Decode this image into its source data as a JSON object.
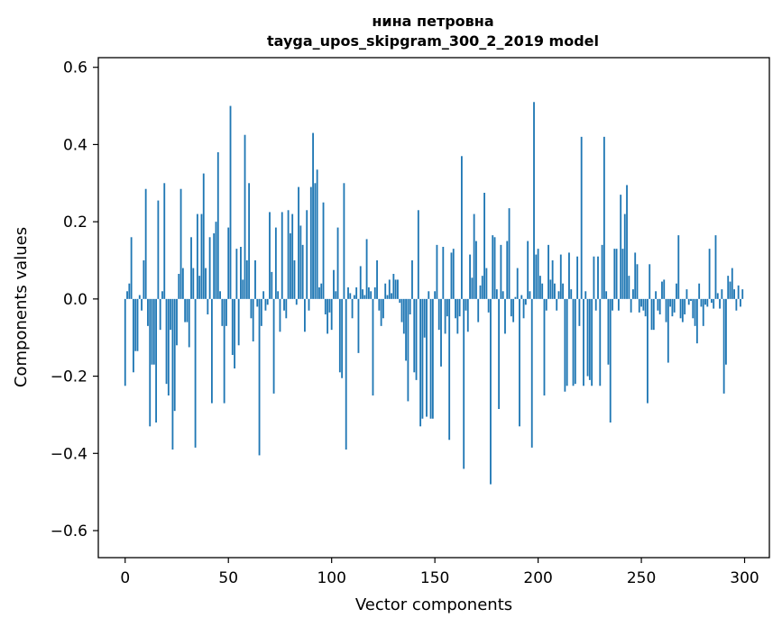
{
  "chart_data": {
    "type": "bar",
    "title": "нина петровна",
    "subtitle": "tayga_upos_skipgram_300_2_2019 model",
    "xlabel": "Vector components",
    "ylabel": "Components values",
    "xlim": [
      -13,
      312
    ],
    "ylim": [
      -0.67,
      0.625
    ],
    "xticks": [
      0,
      50,
      100,
      150,
      200,
      250,
      300
    ],
    "yticks": [
      -0.6,
      -0.4,
      -0.2,
      0.0,
      0.2,
      0.4,
      0.6
    ],
    "xtick_labels": [
      "0",
      "50",
      "100",
      "150",
      "200",
      "250",
      "300"
    ],
    "ytick_labels": [
      "−0.6",
      "−0.4",
      "−0.2",
      "0.0",
      "0.2",
      "0.4",
      "0.6"
    ],
    "bar_color": "#1f77b4",
    "grid": false,
    "values": [
      -0.225,
      0.02,
      0.04,
      0.16,
      -0.19,
      -0.135,
      -0.135,
      0.01,
      -0.03,
      0.1,
      0.285,
      -0.07,
      -0.33,
      -0.17,
      -0.17,
      -0.32,
      0.255,
      -0.08,
      0.02,
      0.3,
      -0.22,
      -0.25,
      -0.08,
      -0.39,
      -0.29,
      -0.12,
      0.065,
      0.285,
      0.08,
      -0.06,
      -0.06,
      -0.125,
      0.16,
      0.08,
      -0.385,
      0.22,
      0.06,
      0.22,
      0.325,
      0.08,
      -0.04,
      0.16,
      -0.27,
      0.17,
      0.2,
      0.38,
      0.02,
      -0.07,
      -0.27,
      -0.07,
      0.185,
      0.5,
      -0.145,
      -0.18,
      0.13,
      -0.12,
      0.135,
      0.05,
      0.425,
      0.1,
      0.3,
      -0.05,
      -0.11,
      0.1,
      -0.02,
      -0.405,
      -0.07,
      0.02,
      -0.03,
      -0.015,
      0.225,
      0.07,
      -0.245,
      0.185,
      0.02,
      -0.085,
      0.225,
      -0.03,
      -0.05,
      0.23,
      0.17,
      0.22,
      0.1,
      -0.015,
      0.29,
      0.19,
      0.14,
      -0.085,
      0.23,
      -0.03,
      0.29,
      0.43,
      0.3,
      0.335,
      0.03,
      0.04,
      0.25,
      -0.04,
      -0.09,
      -0.035,
      -0.08,
      0.075,
      0.02,
      0.185,
      -0.19,
      -0.205,
      0.3,
      -0.39,
      0.03,
      0.015,
      -0.05,
      0.01,
      0.03,
      -0.14,
      0.085,
      0.025,
      0.01,
      0.155,
      0.03,
      0.02,
      -0.25,
      0.03,
      0.1,
      -0.03,
      -0.07,
      -0.05,
      0.04,
      0.01,
      0.05,
      0.015,
      0.065,
      0.05,
      0.05,
      -0.01,
      -0.06,
      -0.09,
      -0.16,
      -0.265,
      -0.04,
      0.1,
      -0.19,
      -0.21,
      0.23,
      -0.33,
      -0.31,
      -0.1,
      -0.305,
      0.02,
      -0.31,
      -0.31,
      0.02,
      0.14,
      -0.08,
      -0.175,
      0.135,
      -0.09,
      -0.045,
      -0.365,
      0.12,
      0.13,
      -0.05,
      -0.09,
      -0.045,
      0.37,
      -0.44,
      -0.03,
      -0.085,
      0.115,
      0.055,
      0.22,
      0.15,
      -0.06,
      0.035,
      0.06,
      0.275,
      0.08,
      -0.035,
      -0.48,
      0.165,
      0.16,
      0.025,
      -0.285,
      0.14,
      0.02,
      -0.09,
      0.15,
      0.235,
      -0.045,
      -0.06,
      0.005,
      0.08,
      -0.33,
      0.01,
      -0.05,
      -0.015,
      0.15,
      0.02,
      -0.385,
      0.51,
      0.115,
      0.13,
      0.06,
      0.04,
      -0.25,
      -0.03,
      0.14,
      0.05,
      0.1,
      0.04,
      -0.03,
      0.02,
      0.115,
      0.04,
      -0.24,
      -0.225,
      0.12,
      0.025,
      -0.225,
      -0.22,
      0.11,
      -0.07,
      0.42,
      -0.225,
      0.02,
      -0.2,
      -0.21,
      -0.225,
      0.11,
      -0.03,
      0.11,
      -0.225,
      0.14,
      0.42,
      0.02,
      -0.17,
      -0.32,
      -0.03,
      0.13,
      0.13,
      -0.03,
      0.27,
      0.13,
      0.22,
      0.295,
      0.06,
      -0.035,
      0.025,
      0.12,
      0.09,
      -0.035,
      -0.02,
      -0.03,
      -0.045,
      -0.27,
      0.09,
      -0.08,
      -0.08,
      0.02,
      -0.03,
      -0.04,
      0.045,
      0.05,
      -0.06,
      -0.165,
      -0.02,
      -0.045,
      -0.035,
      0.04,
      0.165,
      -0.05,
      -0.06,
      -0.04,
      0.025,
      -0.015,
      -0.005,
      -0.05,
      -0.07,
      -0.115,
      0.04,
      -0.02,
      -0.07,
      -0.015,
      -0.02,
      0.13,
      -0.01,
      -0.025,
      0.165,
      0.015,
      -0.025,
      0.025,
      -0.245,
      -0.17,
      0.06,
      0.045,
      0.08,
      0.025,
      -0.03,
      0.035,
      -0.02,
      0.025
    ]
  }
}
